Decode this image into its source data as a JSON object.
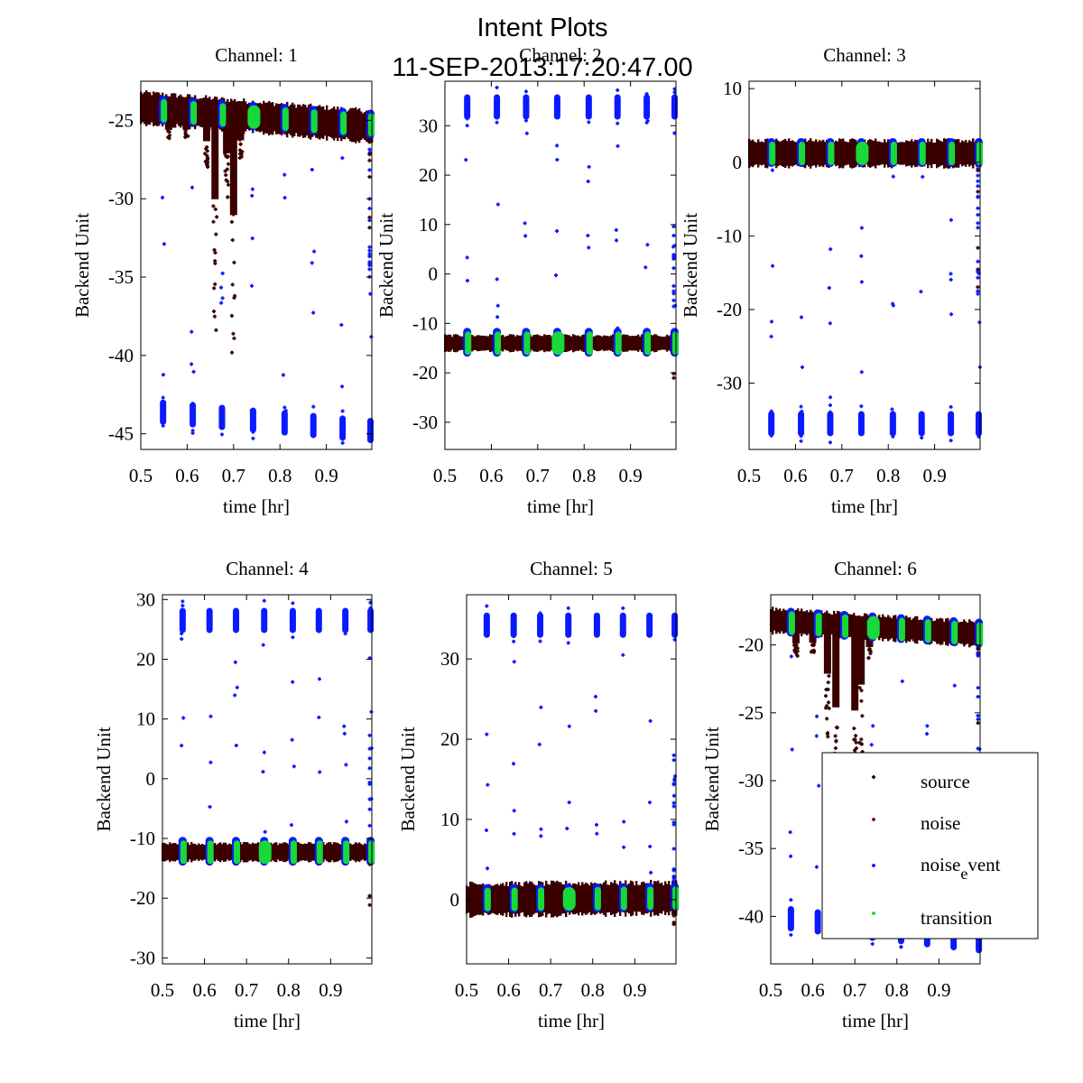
{
  "figure": {
    "title_line1": "Intent Plots",
    "title_line2": "11-SEP-2013:17:20:47.00"
  },
  "chart_data": [
    {
      "type": "scatter",
      "title": "Channel: 1",
      "xlabel": "time [hr]",
      "ylabel": "Backend Unit",
      "xlim": [
        0.5,
        0.998
      ],
      "ylim": [
        -46,
        -22.5
      ],
      "xticks": [
        0.5,
        0.6,
        0.7,
        0.8,
        0.9
      ],
      "yticks": [
        -45,
        -40,
        -35,
        -30,
        -25
      ],
      "series": [
        {
          "name": "source",
          "band_center": [
            -24.2,
            -25.4
          ],
          "band_halfwidth": 1.0,
          "drops": [
            [
              0.56,
              -26.3
            ],
            [
              0.598,
              -26.1
            ],
            [
              0.642,
              -28
            ],
            [
              0.66,
              -38.5
            ],
            [
              0.685,
              -30
            ],
            [
              0.7,
              -41.2
            ],
            [
              0.715,
              -27.5
            ]
          ]
        },
        {
          "name": "noise_event",
          "on_level": [
            -24.3,
            -25.3
          ],
          "off_level": [
            -43.5,
            -44.8
          ],
          "scan_times": [
            0.548,
            0.612,
            0.675,
            0.742,
            0.81,
            0.872,
            0.935,
            0.995
          ]
        },
        {
          "name": "transition",
          "scan_times": [
            0.548,
            0.612,
            0.675,
            0.742,
            0.81,
            0.872,
            0.935,
            0.995
          ]
        }
      ]
    },
    {
      "type": "scatter",
      "title": "Channel: 2",
      "xlabel": "time [hr]",
      "ylabel": "Backend Unit",
      "xlim": [
        0.5,
        0.998
      ],
      "ylim": [
        -35.5,
        39
      ],
      "xticks": [
        0.5,
        0.6,
        0.7,
        0.8,
        0.9
      ],
      "yticks": [
        -30,
        -20,
        -10,
        0,
        10,
        20,
        30
      ],
      "series": [
        {
          "name": "source",
          "band_center": [
            -14,
            -14
          ],
          "band_halfwidth": 1.6,
          "drops": []
        },
        {
          "name": "noise_event",
          "on_level": [
            -14,
            -14
          ],
          "off_level": [
            33.8,
            33.8
          ],
          "scan_times": [
            0.548,
            0.612,
            0.675,
            0.742,
            0.81,
            0.872,
            0.935,
            0.995
          ]
        },
        {
          "name": "transition",
          "scan_times": [
            0.548,
            0.612,
            0.675,
            0.742,
            0.81,
            0.872,
            0.935,
            0.995
          ]
        }
      ]
    },
    {
      "type": "scatter",
      "title": "Channel: 3",
      "xlabel": "time [hr]",
      "ylabel": "Backend Unit",
      "xlim": [
        0.5,
        0.998
      ],
      "ylim": [
        -39,
        11
      ],
      "xticks": [
        0.5,
        0.6,
        0.7,
        0.8,
        0.9
      ],
      "yticks": [
        -30,
        -20,
        -10,
        0,
        10
      ],
      "series": [
        {
          "name": "source",
          "band_center": [
            1.2,
            1.2
          ],
          "band_halfwidth": 1.8,
          "drops": []
        },
        {
          "name": "noise_event",
          "on_level": [
            1.2,
            1.2
          ],
          "off_level": [
            -35.5,
            -35.5
          ],
          "scan_times": [
            0.548,
            0.612,
            0.675,
            0.742,
            0.81,
            0.872,
            0.935,
            0.995
          ]
        },
        {
          "name": "transition",
          "scan_times": [
            0.548,
            0.612,
            0.675,
            0.742,
            0.81,
            0.872,
            0.935,
            0.995
          ]
        }
      ]
    },
    {
      "type": "scatter",
      "title": "Channel: 4",
      "xlabel": "time [hr]",
      "ylabel": "Backend Unit",
      "xlim": [
        0.5,
        0.998
      ],
      "ylim": [
        -31,
        30.8
      ],
      "xticks": [
        0.5,
        0.6,
        0.7,
        0.8,
        0.9
      ],
      "yticks": [
        -30,
        -20,
        -10,
        0,
        10,
        20,
        30
      ],
      "series": [
        {
          "name": "source",
          "band_center": [
            -12.3,
            -12.3
          ],
          "band_halfwidth": 1.5,
          "drops": []
        },
        {
          "name": "noise_event",
          "on_level": [
            -12.3,
            -12.3
          ],
          "off_level": [
            26.5,
            26.5
          ],
          "scan_times": [
            0.548,
            0.612,
            0.675,
            0.742,
            0.81,
            0.872,
            0.935,
            0.995
          ]
        },
        {
          "name": "transition",
          "scan_times": [
            0.548,
            0.612,
            0.675,
            0.742,
            0.81,
            0.872,
            0.935,
            0.995
          ]
        }
      ]
    },
    {
      "type": "scatter",
      "title": "Channel: 5",
      "xlabel": "time [hr]",
      "ylabel": "Backend Unit",
      "xlim": [
        0.5,
        0.998
      ],
      "ylim": [
        -8,
        38
      ],
      "xticks": [
        0.5,
        0.6,
        0.7,
        0.8,
        0.9
      ],
      "yticks": [
        0,
        10,
        20,
        30
      ],
      "series": [
        {
          "name": "source",
          "band_center": [
            0,
            0.2
          ],
          "band_halfwidth": 2.0,
          "drops": []
        },
        {
          "name": "noise_event",
          "on_level": [
            0,
            0.2
          ],
          "off_level": [
            34.2,
            34.2
          ],
          "scan_times": [
            0.548,
            0.612,
            0.675,
            0.742,
            0.81,
            0.872,
            0.935,
            0.995
          ]
        },
        {
          "name": "transition",
          "scan_times": [
            0.548,
            0.612,
            0.675,
            0.742,
            0.81,
            0.872,
            0.935,
            0.995
          ]
        }
      ]
    },
    {
      "type": "scatter",
      "title": "Channel: 6",
      "xlabel": "time [hr]",
      "ylabel": "Backend Unit",
      "xlim": [
        0.5,
        0.998
      ],
      "ylim": [
        -43.5,
        -16.3
      ],
      "xticks": [
        0.5,
        0.6,
        0.7,
        0.8,
        0.9
      ],
      "yticks": [
        -40,
        -35,
        -30,
        -25,
        -20
      ],
      "series": [
        {
          "name": "source",
          "band_center": [
            -18.2,
            -19.2
          ],
          "band_halfwidth": 0.9,
          "drops": [
            [
              0.56,
              -20.9
            ],
            [
              0.6,
              -20.6
            ],
            [
              0.635,
              -27
            ],
            [
              0.655,
              -34
            ],
            [
              0.7,
              -34.5
            ],
            [
              0.715,
              -29
            ],
            [
              0.735,
              -21
            ]
          ]
        },
        {
          "name": "noise_event",
          "on_level": [
            -18.3,
            -19.2
          ],
          "off_level": [
            -40,
            -41.8
          ],
          "scan_times": [
            0.548,
            0.612,
            0.675,
            0.742,
            0.81,
            0.872,
            0.935,
            0.995
          ]
        },
        {
          "name": "transition",
          "scan_times": [
            0.548,
            0.612,
            0.675,
            0.742,
            0.81,
            0.872,
            0.935,
            0.995
          ]
        }
      ]
    }
  ],
  "legend": {
    "placement": "lower-right of Channel 6",
    "entries": [
      {
        "label": "source",
        "color": "#3a0000"
      },
      {
        "label": "noise",
        "color": "#7a0020"
      },
      {
        "label_main": "noise",
        "label_sub": "e",
        "label_rest": "vent",
        "color": "#0000ff"
      },
      {
        "label": "transition",
        "color": "#11dd33"
      }
    ]
  },
  "colors": {
    "source": "#3a0000",
    "noise": "#7a0020",
    "noise_event": "#0a1aff",
    "transition": "#17d93a"
  }
}
